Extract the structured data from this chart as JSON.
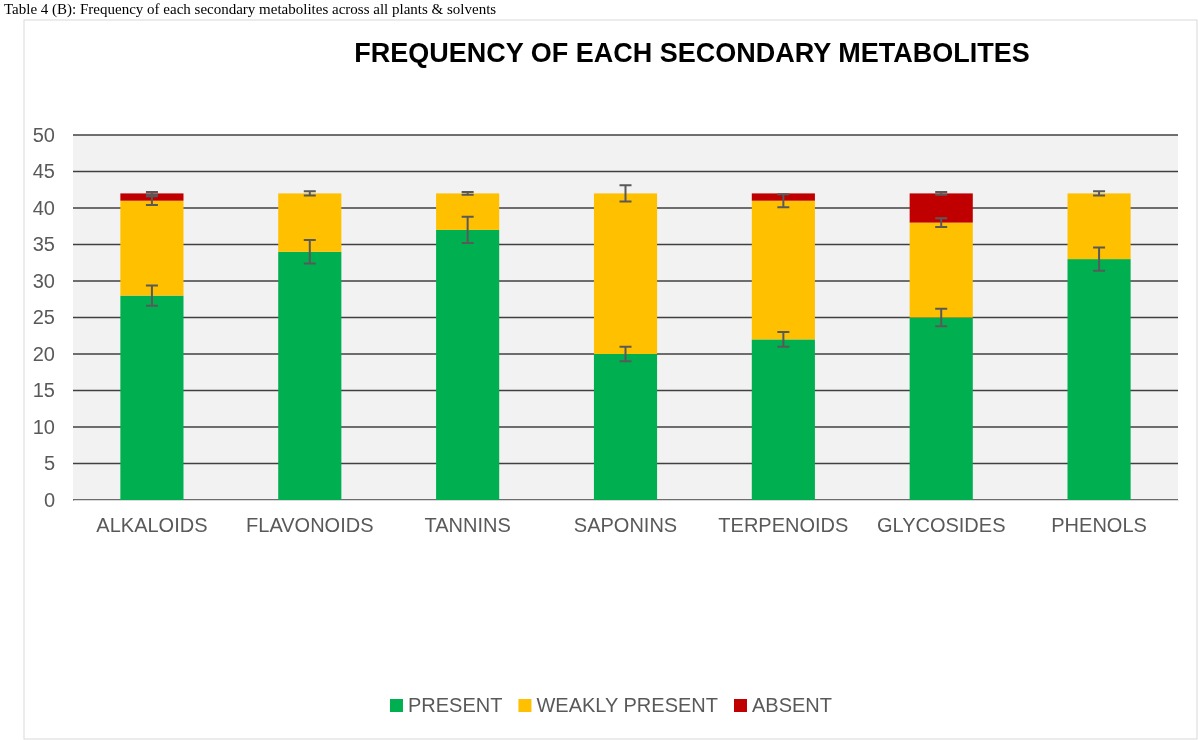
{
  "chart_data": {
    "type": "bar",
    "title": "FREQUENCY OF EACH SECONDARY METABOLITES",
    "annotations": [
      "Table 4 (B): Frequency of each secondary metabolites across all plants & solvents"
    ],
    "categories": [
      "ALKALOIDS",
      "FLAVONOIDS",
      "TANNINS",
      "SAPONINS",
      "TERPENOIDS",
      "GLYCOSIDES",
      "PHENOLS"
    ],
    "stacked": true,
    "ylim": [
      0,
      50
    ],
    "yticks": [
      0,
      5,
      10,
      15,
      20,
      25,
      30,
      35,
      40,
      45,
      50
    ],
    "grid": "y",
    "legend": "bottom",
    "series": [
      {
        "name": "PRESENT",
        "color": "#00b050",
        "values": [
          28,
          34,
          37,
          20,
          22,
          25,
          33
        ],
        "errors": [
          1.4,
          1.6,
          1.8,
          1,
          1,
          1.2,
          1.6
        ]
      },
      {
        "name": "WEAKLY PRESENT",
        "color": "#ffc000",
        "values": [
          13,
          8,
          5,
          22,
          19,
          13,
          9
        ],
        "errors": [
          0.6,
          0.3,
          0.2,
          1.1,
          0.9,
          0.6,
          0.3
        ]
      },
      {
        "name": "ABSENT",
        "color": "#c00000",
        "values": [
          1,
          0,
          0,
          0,
          1,
          4,
          0
        ],
        "errors": [
          0.2,
          null,
          null,
          null,
          null,
          0.2,
          null
        ]
      }
    ]
  }
}
